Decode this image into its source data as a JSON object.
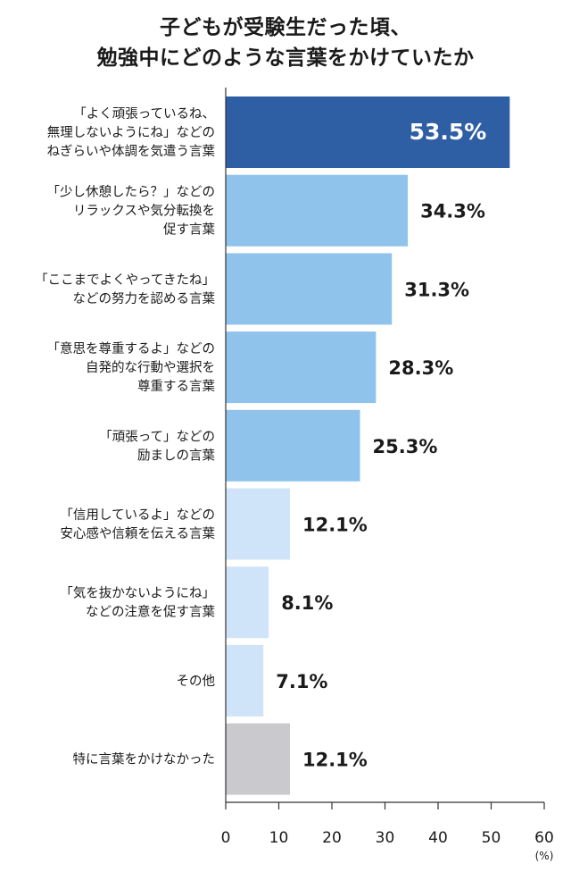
{
  "title": [
    "子どもが受験生だった頃、",
    "勉強中にどのような言葉をかけていたか"
  ],
  "chart_data": {
    "type": "bar",
    "orientation": "horizontal",
    "categories": [
      [
        "「よく頑張っているね、",
        "無理しないようにね」などの",
        "ねぎらいや体調を気遣う言葉"
      ],
      [
        "「少し休憩したら？」などの",
        "リラックスや気分転換を",
        "促す言葉"
      ],
      [
        "「ここまでよくやってきたね」",
        "などの努力を認める言葉"
      ],
      [
        "「意思を尊重するよ」などの",
        "自発的な行動や選択を",
        "尊重する言葉"
      ],
      [
        "「頑張って」などの",
        "励ましの言葉"
      ],
      [
        "「信用しているよ」などの",
        "安心感や信頼を伝える言葉"
      ],
      [
        "「気を抜かないようにね」",
        "などの注意を促す言葉"
      ],
      [
        "その他"
      ],
      [
        "特に言葉をかけなかった"
      ]
    ],
    "values": [
      53.5,
      34.3,
      31.3,
      28.3,
      25.3,
      12.1,
      8.1,
      7.1,
      12.1
    ],
    "value_labels": [
      "53.5%",
      "34.3%",
      "31.3%",
      "28.3%",
      "25.3%",
      "12.1%",
      "8.1%",
      "7.1%",
      "12.1%"
    ],
    "colors": [
      "#2e5fa5",
      "#8fc3ec",
      "#8fc3ec",
      "#8fc3ec",
      "#8fc3ec",
      "#cfe4f8",
      "#cfe4f8",
      "#cfe4f8",
      "#c9c9ce"
    ],
    "xlim": [
      0,
      60
    ],
    "xticks": [
      0,
      10,
      20,
      30,
      40,
      50,
      60
    ],
    "unit": "(%)",
    "grid": false
  }
}
